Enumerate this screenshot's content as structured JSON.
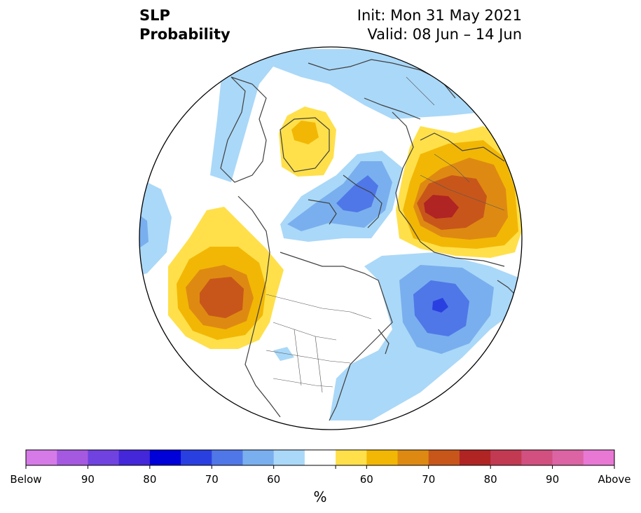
{
  "header": {
    "variable": "SLP",
    "product": "Probability",
    "init": "Init: Mon 31 May 2021",
    "valid": "Valid: 08 Jun – 14 Jun"
  },
  "colorbar": {
    "unit": "%",
    "colors": [
      "#d67ae8",
      "#a559e0",
      "#7042e0",
      "#4327d8",
      "#0000d8",
      "#2a3fe0",
      "#4f77e8",
      "#79afee",
      "#aad8f8",
      "#ffffff",
      "#ffe04a",
      "#f2b705",
      "#de8a12",
      "#c8561a",
      "#b02424",
      "#c23a52",
      "#d15080",
      "#dc64a4",
      "#e878d4"
    ],
    "labels": [
      "Below",
      "90",
      "80",
      "70",
      "60",
      "60",
      "70",
      "80",
      "90",
      "Above"
    ]
  },
  "features": {
    "below_color_light": "#aad8f8",
    "below_color_mid": "#79afee",
    "below_color_med": "#4f77e8",
    "below_color_dark": "#2a3fe0",
    "above_color_light": "#ffe04a",
    "above_color_mid": "#f2b705",
    "above_color_med": "#de8a12",
    "above_color_dark": "#c8561a",
    "above_color_max": "#b02424"
  }
}
